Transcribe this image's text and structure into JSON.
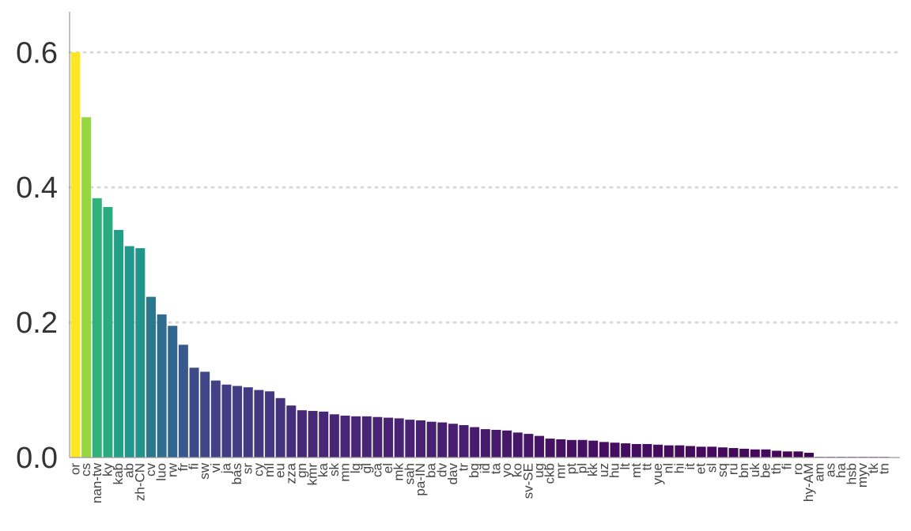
{
  "chart_data": {
    "type": "bar",
    "title": "",
    "xlabel": "",
    "ylabel": "",
    "ylim": [
      0,
      0.66
    ],
    "yticks": [
      "0.0",
      "0.2",
      "0.4",
      "0.6"
    ],
    "ytick_values": [
      0.0,
      0.2,
      0.4,
      0.6
    ],
    "grid": "horizontal-dotted",
    "color_scale": "viridis",
    "categories": [
      "or",
      "cs",
      "nan-tw",
      "ky",
      "kab",
      "ab",
      "zh-CN",
      "cv",
      "luo",
      "rw",
      "fr",
      "fi",
      "sw",
      "vi",
      "ja",
      "bas",
      "sr",
      "cy",
      "ml",
      "eu",
      "zza",
      "gn",
      "kmr",
      "ka",
      "sk",
      "mn",
      "lg",
      "gl",
      "ca",
      "el",
      "mk",
      "sah",
      "pa-IN",
      "ba",
      "dv",
      "dav",
      "tr",
      "bg",
      "id",
      "ta",
      "yo",
      "ko",
      "sv-SE",
      "ug",
      "ckb",
      "mr",
      "pt",
      "pl",
      "kk",
      "uz",
      "hu",
      "lt",
      "mt",
      "tt",
      "yue",
      "nl",
      "hi",
      "it",
      "et",
      "sl",
      "sq",
      "ru",
      "bn",
      "uk",
      "be",
      "th",
      "fi",
      "ro",
      "hy-AM",
      "am",
      "as",
      "ha",
      "hsb",
      "myv",
      "tk",
      "tn"
    ],
    "values": [
      0.6,
      0.504,
      0.384,
      0.371,
      0.337,
      0.313,
      0.31,
      0.238,
      0.212,
      0.195,
      0.167,
      0.133,
      0.127,
      0.114,
      0.108,
      0.106,
      0.104,
      0.1,
      0.098,
      0.088,
      0.077,
      0.07,
      0.069,
      0.068,
      0.064,
      0.062,
      0.061,
      0.061,
      0.06,
      0.059,
      0.058,
      0.056,
      0.055,
      0.053,
      0.052,
      0.05,
      0.048,
      0.045,
      0.042,
      0.041,
      0.04,
      0.037,
      0.035,
      0.032,
      0.028,
      0.027,
      0.026,
      0.026,
      0.025,
      0.023,
      0.022,
      0.021,
      0.02,
      0.02,
      0.019,
      0.018,
      0.018,
      0.017,
      0.016,
      0.016,
      0.015,
      0.014,
      0.013,
      0.012,
      0.012,
      0.01,
      0.009,
      0.009,
      0.007,
      0.001,
      0.001,
      0.001,
      0.001,
      0.001,
      0.001,
      0.001
    ]
  }
}
